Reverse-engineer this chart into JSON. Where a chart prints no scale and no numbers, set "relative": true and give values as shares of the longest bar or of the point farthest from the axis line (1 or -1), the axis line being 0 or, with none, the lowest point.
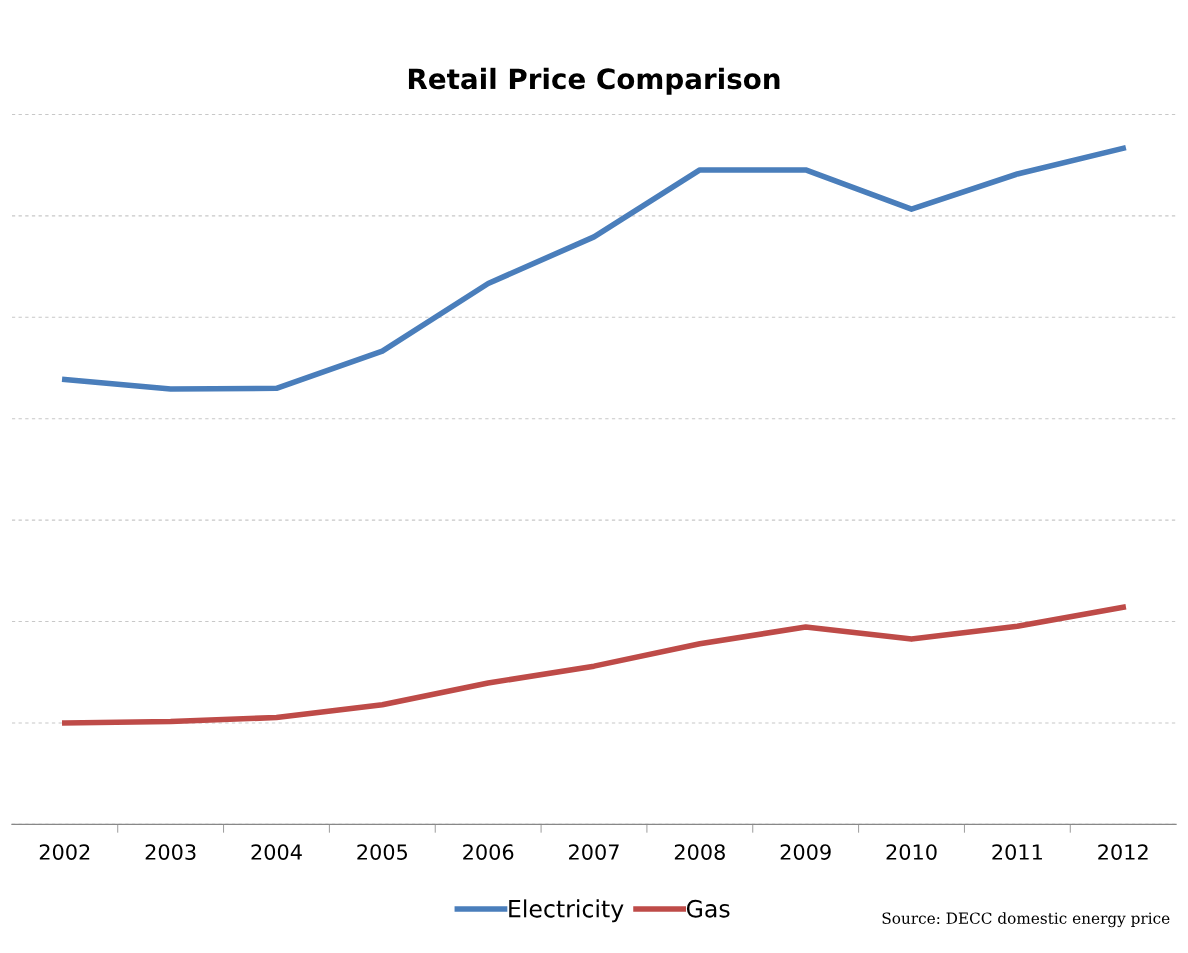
{
  "chart_data": {
    "type": "line",
    "title": "Retail Price Comparison",
    "relative": true,
    "categories": [
      "2002",
      "2003",
      "2004",
      "2005",
      "2006",
      "2007",
      "2008",
      "2009",
      "2010",
      "2011",
      "2012"
    ],
    "series": [
      {
        "name": "Electricity",
        "color": "#4a7ebb",
        "values": [
          0.658,
          0.644,
          0.645,
          0.7,
          0.8,
          0.869,
          0.968,
          0.968,
          0.91,
          0.962,
          1.0
        ]
      },
      {
        "name": "Gas",
        "color": "#be4b48",
        "values": [
          0.15,
          0.152,
          0.158,
          0.177,
          0.209,
          0.234,
          0.267,
          0.292,
          0.274,
          0.293,
          0.321
        ]
      }
    ],
    "grid": "y",
    "legend": "bottom",
    "marker": "none",
    "line_style": "solid",
    "annotations": [
      "Source: DECC domestic energy price"
    ]
  }
}
